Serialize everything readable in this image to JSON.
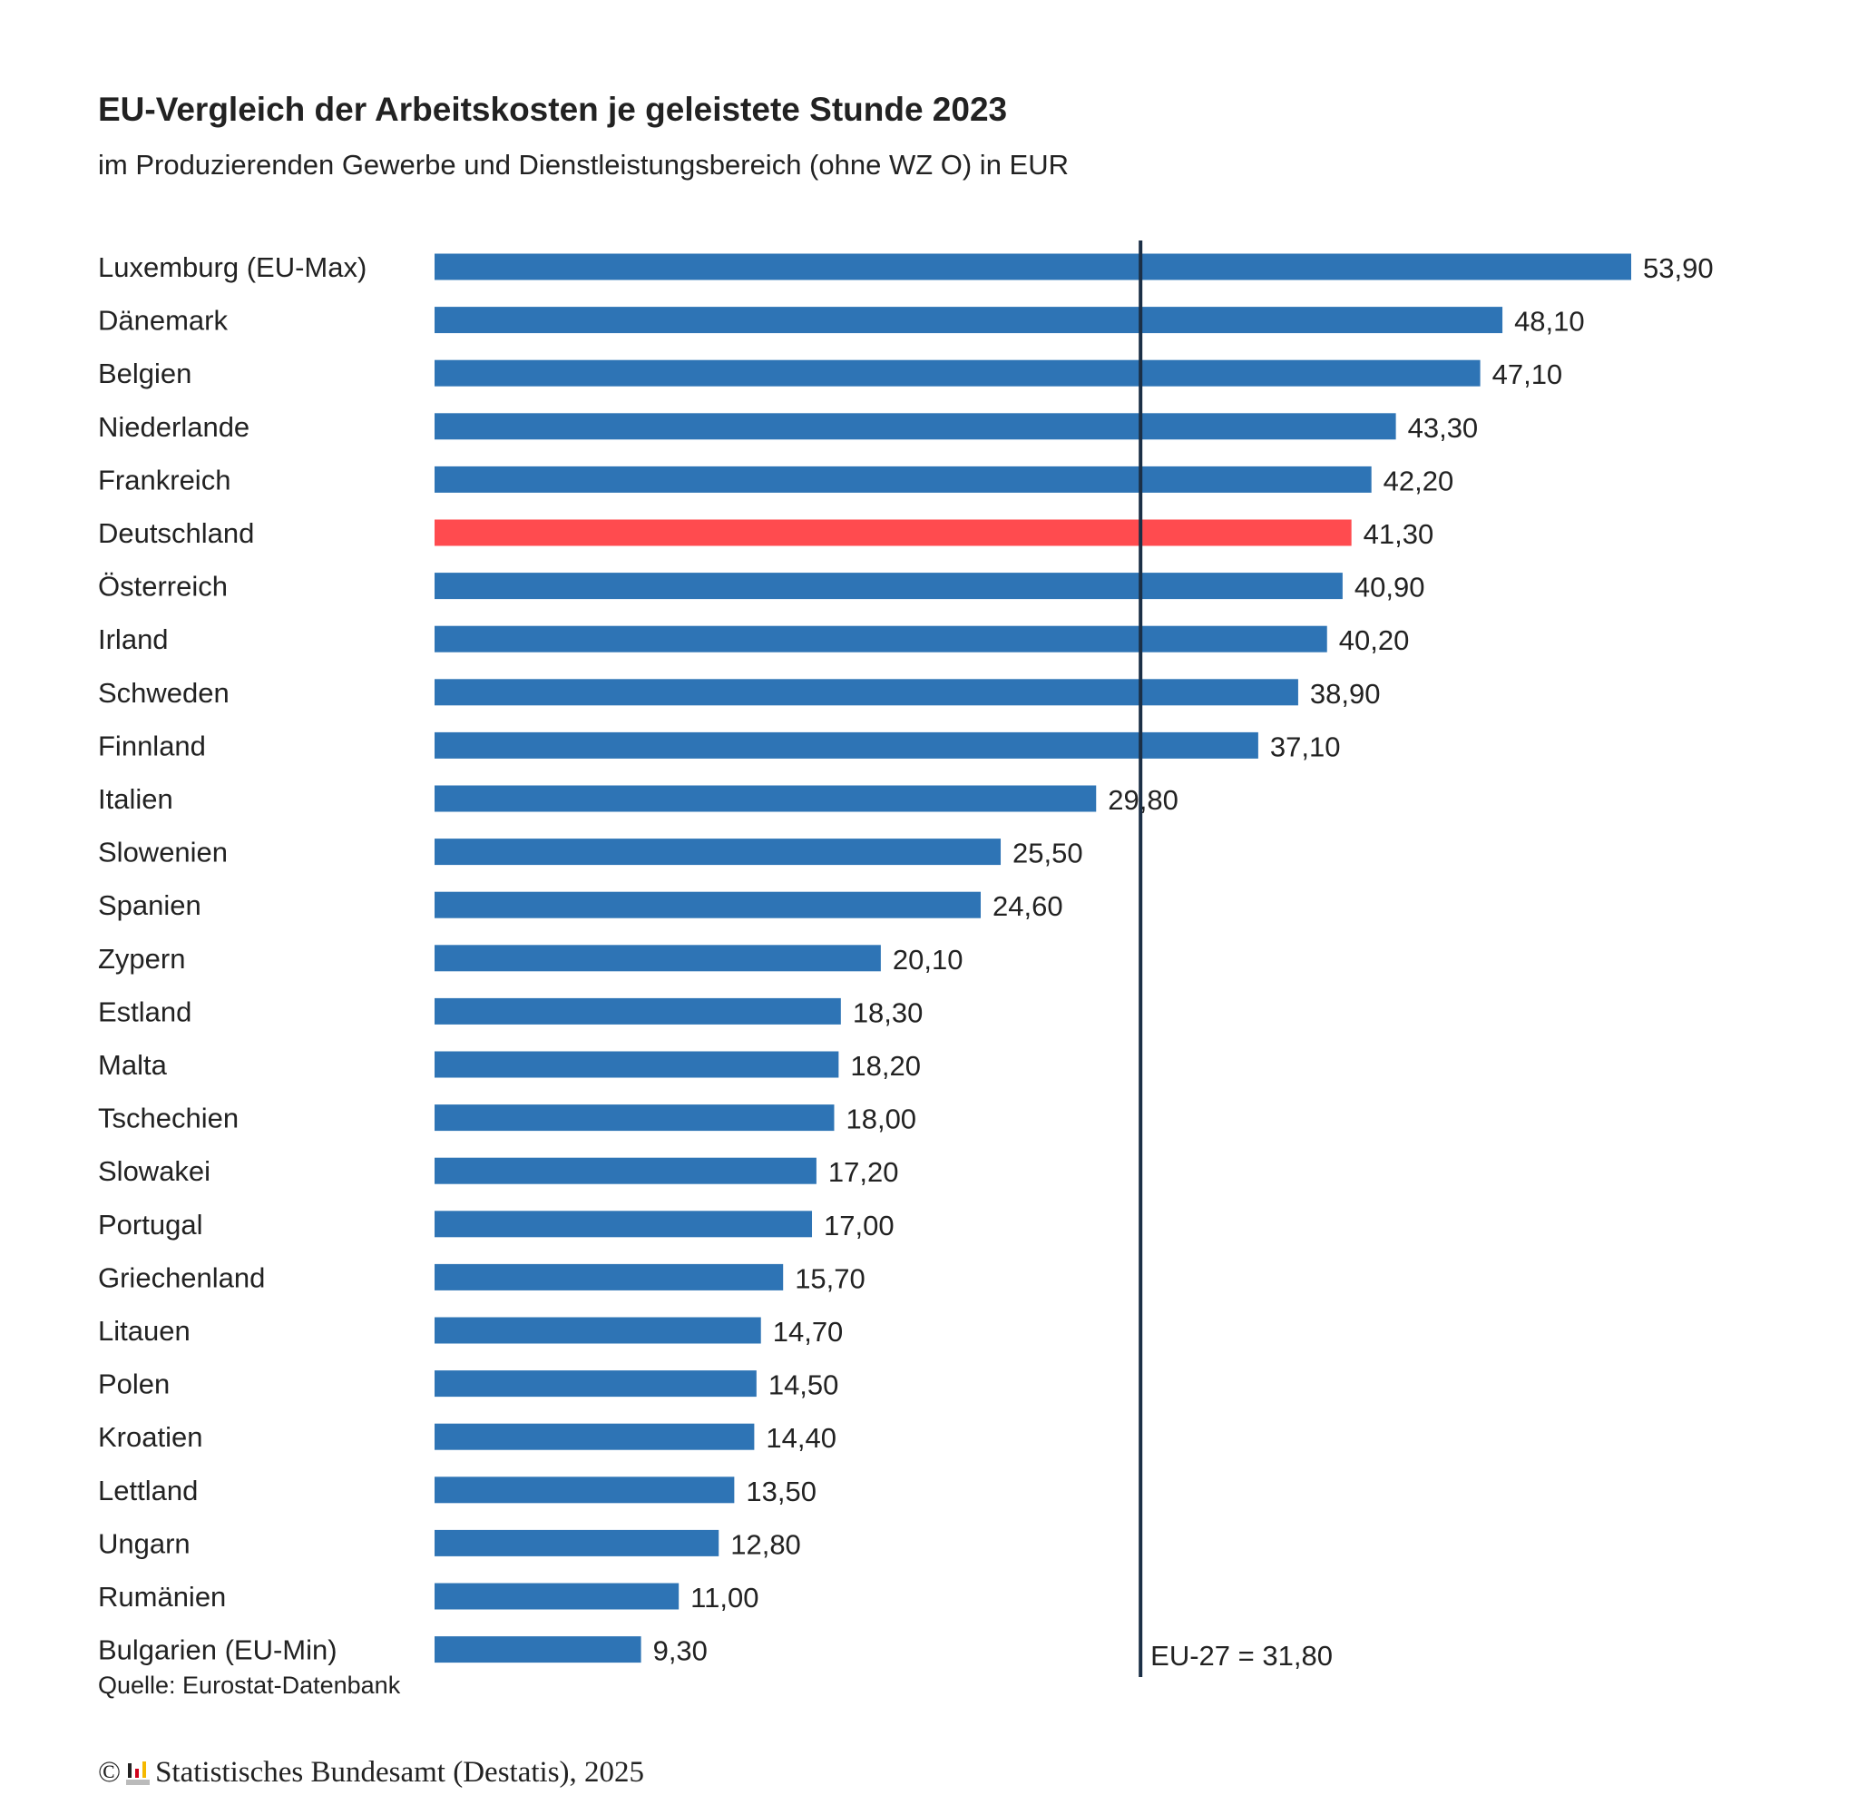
{
  "chart_data": {
    "type": "bar",
    "orientation": "horizontal",
    "title": "EU-Vergleich der Arbeitskosten je geleistete Stunde 2023",
    "subtitle": "im Produzierenden Gewerbe und Dienstleistungsbereich (ohne WZ O) in EUR",
    "categories": [
      "Luxemburg (EU-Max)",
      "Dänemark",
      "Belgien",
      "Niederlande",
      "Frankreich",
      "Deutschland",
      "Österreich",
      "Irland",
      "Schweden",
      "Finnland",
      "Italien",
      "Slowenien",
      "Spanien",
      "Zypern",
      "Estland",
      "Malta",
      "Tschechien",
      "Slowakei",
      "Portugal",
      "Griechenland",
      "Litauen",
      "Polen",
      "Kroatien",
      "Lettland",
      "Ungarn",
      "Rumänien",
      "Bulgarien (EU-Min)"
    ],
    "values": [
      53.9,
      48.1,
      47.1,
      43.3,
      42.2,
      41.3,
      40.9,
      40.2,
      38.9,
      37.1,
      29.8,
      25.5,
      24.6,
      20.1,
      18.3,
      18.2,
      18.0,
      17.2,
      17.0,
      15.7,
      14.7,
      14.5,
      14.4,
      13.5,
      12.8,
      11.0,
      9.3
    ],
    "value_labels": [
      "53,90",
      "48,10",
      "47,10",
      "43,30",
      "42,20",
      "41,30",
      "40,90",
      "40,20",
      "38,90",
      "37,10",
      "29,80",
      "25,50",
      "24,60",
      "20,10",
      "18,30",
      "18,20",
      "18,00",
      "17,20",
      "17,00",
      "15,70",
      "14,70",
      "14,50",
      "14,40",
      "13,50",
      "12,80",
      "11,00",
      "9,30"
    ],
    "highlight": "Deutschland",
    "reference_line": {
      "value": 31.8,
      "label": "EU-27 = 31,80"
    },
    "xlim": [
      0,
      53.9
    ],
    "grid": false,
    "colors": {
      "bar": "#2e74b5",
      "highlight": "#ff4b4f",
      "reference": "#1b2f46"
    }
  },
  "footer": {
    "source": "Quelle: Eurostat-Datenbank",
    "copyright_symbol": "©",
    "copyright": "Statistisches Bundesamt (Destatis), 2025"
  }
}
